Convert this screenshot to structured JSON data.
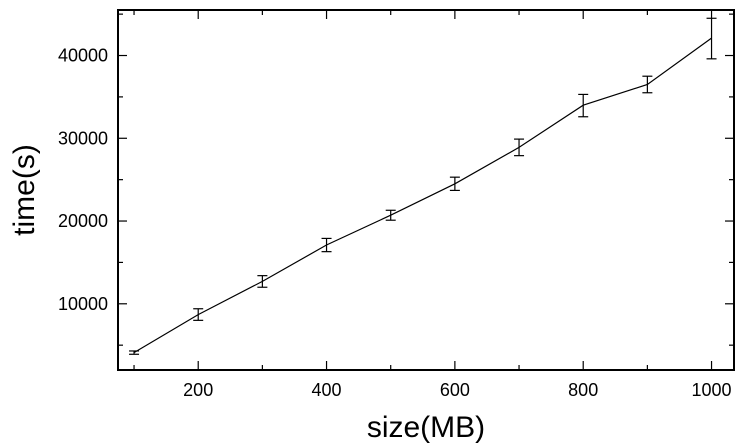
{
  "chart_data": {
    "type": "line",
    "title": "",
    "xlabel": "size(MB)",
    "ylabel": "time(s)",
    "xlim": [
      75,
      1035
    ],
    "ylim": [
      2000,
      45500
    ],
    "xticks": [
      200,
      400,
      600,
      800,
      1000
    ],
    "yticks": [
      10000,
      20000,
      30000,
      40000
    ],
    "grid": false,
    "legend": "none",
    "series": [
      {
        "x": [
          100,
          200,
          300,
          400,
          500,
          600,
          700,
          800,
          900,
          1000
        ],
        "y": [
          4100,
          8700,
          12700,
          17100,
          20700,
          24500,
          28900,
          34000,
          36500,
          42100
        ],
        "yerr_low": [
          3900,
          8000,
          12000,
          16300,
          20100,
          23700,
          27900,
          32600,
          35500,
          39600
        ],
        "yerr_high": [
          4300,
          9400,
          13400,
          17900,
          21300,
          25300,
          29900,
          35300,
          37500,
          44500
        ]
      }
    ],
    "colors": {
      "line": "#000000",
      "axes": "#000000"
    }
  }
}
